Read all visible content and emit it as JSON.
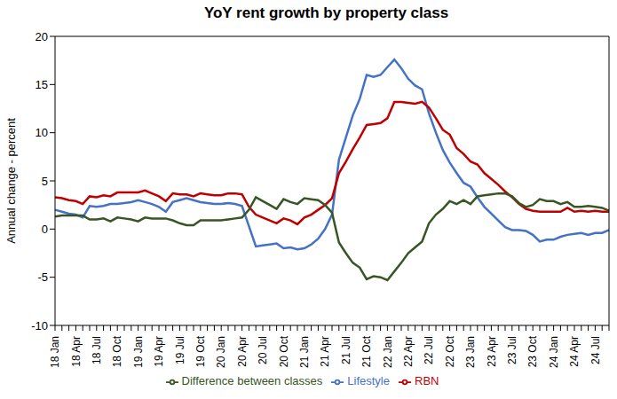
{
  "chart_data": {
    "type": "line",
    "title": "YoY rent growth by property class",
    "y_label": "Annual change - percent",
    "categories": [
      "18 Jan",
      null,
      null,
      "18 Apr",
      null,
      null,
      "18 Jul",
      null,
      null,
      "18 Oct",
      null,
      null,
      "19 Jan",
      null,
      null,
      "19 Apr",
      null,
      null,
      "19 Jul",
      null,
      null,
      "19 Oct",
      null,
      null,
      "20 Jan",
      null,
      null,
      "20 Apr",
      null,
      null,
      "20 Jul",
      null,
      null,
      "20 Oct",
      null,
      null,
      "21 Jan",
      null,
      null,
      "21 Apr",
      null,
      null,
      "21 Jul",
      null,
      null,
      "21 Oct",
      null,
      null,
      "22 Jan",
      null,
      null,
      "22 Apr",
      null,
      null,
      "22 Jul",
      null,
      null,
      "22 Oct",
      null,
      null,
      "23 Jan",
      null,
      null,
      "23 Apr",
      null,
      null,
      "23 Jul",
      null,
      null,
      "23 Oct",
      null,
      null,
      "24 Jan",
      null,
      null,
      "24 Apr",
      null,
      null,
      "24 Jul",
      null,
      null
    ],
    "series": [
      {
        "name": "Lifestyle",
        "color": "#4472c4",
        "values": [
          2.0,
          1.8,
          1.6,
          1.5,
          1.2,
          2.4,
          2.3,
          2.4,
          2.6,
          2.6,
          2.7,
          2.8,
          3.0,
          2.8,
          2.6,
          2.3,
          1.8,
          2.8,
          3.0,
          3.2,
          3.0,
          2.8,
          2.7,
          2.6,
          2.6,
          2.7,
          2.6,
          2.4,
          0.3,
          -1.8,
          -1.7,
          -1.6,
          -1.5,
          -2.0,
          -1.9,
          -2.1,
          -2.0,
          -1.6,
          -1.0,
          0.0,
          1.5,
          7.2,
          9.5,
          11.8,
          13.5,
          16.0,
          15.8,
          16.0,
          16.8,
          17.6,
          16.7,
          15.6,
          14.9,
          14.5,
          12.0,
          10.0,
          8.2,
          6.9,
          5.8,
          4.8,
          4.4,
          3.3,
          2.3,
          1.6,
          0.9,
          0.2,
          -0.1,
          -0.1,
          -0.2,
          -0.6,
          -1.3,
          -1.1,
          -1.1,
          -0.8,
          -0.6,
          -0.5,
          -0.4,
          -0.6,
          -0.4,
          -0.4,
          -0.1
        ]
      },
      {
        "name": "RBN",
        "color": "#c00000",
        "values": [
          3.3,
          3.2,
          3.0,
          2.9,
          2.6,
          3.4,
          3.3,
          3.5,
          3.4,
          3.8,
          3.8,
          3.8,
          3.8,
          4.0,
          3.7,
          3.4,
          2.9,
          3.7,
          3.6,
          3.6,
          3.4,
          3.7,
          3.6,
          3.5,
          3.5,
          3.7,
          3.7,
          3.6,
          2.3,
          1.5,
          1.2,
          0.9,
          0.6,
          1.1,
          0.9,
          0.5,
          1.2,
          1.5,
          2.0,
          2.5,
          3.2,
          5.8,
          7.0,
          8.3,
          9.5,
          10.8,
          10.9,
          11.0,
          11.5,
          13.2,
          13.2,
          13.1,
          13.0,
          13.2,
          12.6,
          11.5,
          10.3,
          9.8,
          8.4,
          7.8,
          7.0,
          6.7,
          5.8,
          5.2,
          4.6,
          3.9,
          3.3,
          2.6,
          2.1,
          1.9,
          1.8,
          1.8,
          1.8,
          1.8,
          2.2,
          1.8,
          1.9,
          1.8,
          1.9,
          1.8,
          1.8
        ]
      },
      {
        "name": "Difference between classes",
        "color": "#375623",
        "values": [
          1.3,
          1.4,
          1.4,
          1.4,
          1.4,
          1.0,
          1.0,
          1.1,
          0.8,
          1.2,
          1.1,
          1.0,
          0.8,
          1.2,
          1.1,
          1.1,
          1.1,
          0.9,
          0.6,
          0.4,
          0.4,
          0.9,
          0.9,
          0.9,
          0.9,
          1.0,
          1.1,
          1.2,
          2.0,
          3.3,
          2.9,
          2.5,
          2.1,
          3.1,
          2.8,
          2.6,
          3.2,
          3.1,
          3.0,
          2.5,
          1.7,
          -1.4,
          -2.5,
          -3.5,
          -4.0,
          -5.2,
          -4.9,
          -5.0,
          -5.3,
          -4.4,
          -3.5,
          -2.5,
          -1.9,
          -1.3,
          0.6,
          1.5,
          2.1,
          2.9,
          2.6,
          3.0,
          2.6,
          3.4,
          3.5,
          3.6,
          3.7,
          3.7,
          3.4,
          2.7,
          2.3,
          2.5,
          3.1,
          2.9,
          2.9,
          2.6,
          2.8,
          2.3,
          2.3,
          2.4,
          2.3,
          2.2,
          1.9
        ]
      }
    ],
    "ylim": [
      -10,
      20
    ],
    "yticks": [
      -10,
      -5,
      0,
      5,
      10,
      15,
      20
    ],
    "grid": false,
    "legend": "bottom"
  }
}
